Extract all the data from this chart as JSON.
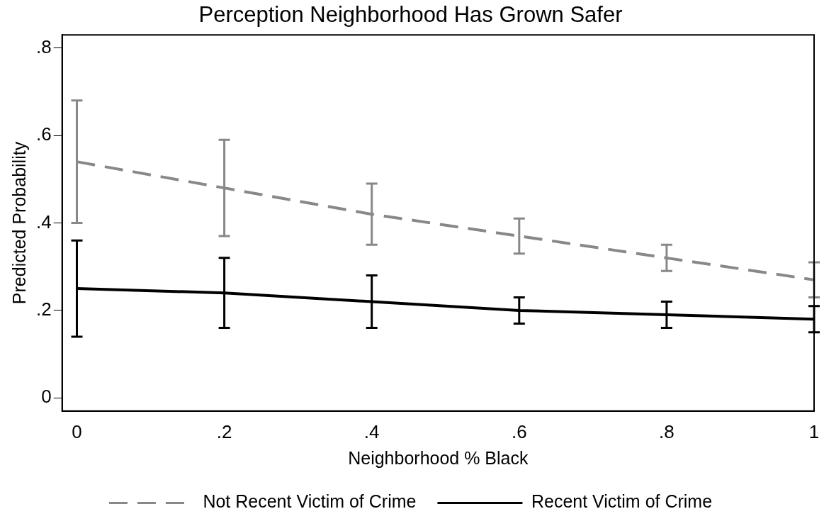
{
  "chart_data": {
    "type": "line",
    "title": "Perception Neighborhood Has Grown Safer",
    "xlabel": "Neighborhood % Black",
    "ylabel": "Predicted Probability",
    "x": [
      0,
      0.2,
      0.4,
      0.6,
      0.8,
      1
    ],
    "series": [
      {
        "name": "Not Recent Victim of Crime",
        "color": "#888888",
        "line_style": "dashed",
        "values": [
          0.54,
          0.48,
          0.42,
          0.37,
          0.32,
          0.27
        ],
        "errors": [
          0.14,
          0.11,
          0.07,
          0.04,
          0.03,
          0.04
        ]
      },
      {
        "name": "Recent Victim of Crime",
        "color": "#000000",
        "line_style": "solid",
        "values": [
          0.25,
          0.24,
          0.22,
          0.2,
          0.19,
          0.18
        ],
        "errors": [
          0.11,
          0.08,
          0.06,
          0.03,
          0.03,
          0.03
        ]
      }
    ],
    "xlim": [
      -0.02,
      1.0
    ],
    "xticks": [
      {
        "value": 0,
        "label": "0"
      },
      {
        "value": 0.2,
        "label": ".2"
      },
      {
        "value": 0.4,
        "label": ".4"
      },
      {
        "value": 0.6,
        "label": ".6"
      },
      {
        "value": 0.8,
        "label": ".8"
      },
      {
        "value": 1,
        "label": "1"
      }
    ],
    "ylim": [
      -0.03,
      0.83
    ],
    "yticks": [
      {
        "value": 0,
        "label": "0"
      },
      {
        "value": 0.2,
        "label": ".2"
      },
      {
        "value": 0.4,
        "label": ".4"
      },
      {
        "value": 0.6,
        "label": ".6"
      },
      {
        "value": 0.8,
        "label": ".8"
      }
    ],
    "grid": false,
    "legend": "bottom",
    "marker": "none"
  }
}
